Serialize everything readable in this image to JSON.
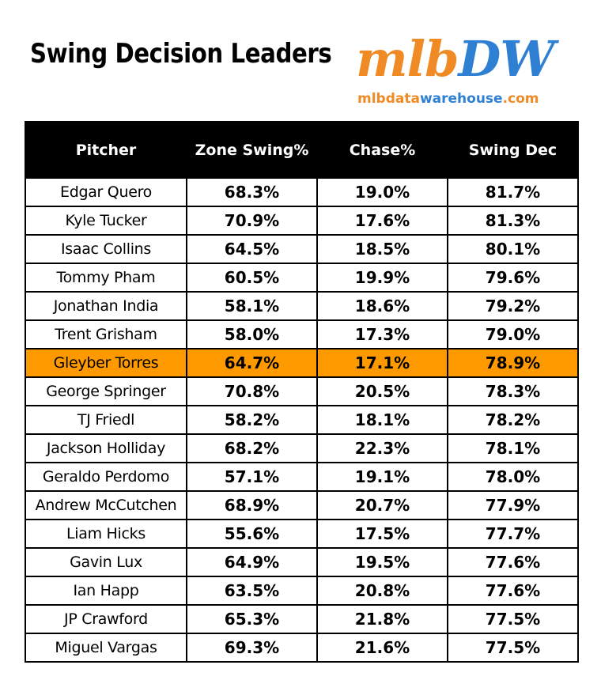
{
  "title": "Swing Decision Leaders",
  "logo": {
    "mark_part1": "mlb",
    "mark_part2": "DW",
    "url_part1": "mlbdata",
    "url_part2": "warehouse",
    "url_part3": ".com"
  },
  "colors": {
    "header_bg": "#000000",
    "highlight": "#ff9900",
    "logo_orange": "#f08a24",
    "logo_blue": "#2f7fd3"
  },
  "chart_data": {
    "type": "table",
    "columns": [
      "Pitcher",
      "Zone Swing%",
      "Chase%",
      "Swing Dec"
    ],
    "highlighted_row": "Gleyber Torres",
    "rows": [
      [
        "Edgar Quero",
        "68.3%",
        "19.0%",
        "81.7%"
      ],
      [
        "Kyle Tucker",
        "70.9%",
        "17.6%",
        "81.3%"
      ],
      [
        "Isaac Collins",
        "64.5%",
        "18.5%",
        "80.1%"
      ],
      [
        "Tommy Pham",
        "60.5%",
        "19.9%",
        "79.6%"
      ],
      [
        "Jonathan India",
        "58.1%",
        "18.6%",
        "79.2%"
      ],
      [
        "Trent Grisham",
        "58.0%",
        "17.3%",
        "79.0%"
      ],
      [
        "Gleyber Torres",
        "64.7%",
        "17.1%",
        "78.9%"
      ],
      [
        "George Springer",
        "70.8%",
        "20.5%",
        "78.3%"
      ],
      [
        "TJ Friedl",
        "58.2%",
        "18.1%",
        "78.2%"
      ],
      [
        "Jackson Holliday",
        "68.2%",
        "22.3%",
        "78.1%"
      ],
      [
        "Geraldo Perdomo",
        "57.1%",
        "19.1%",
        "78.0%"
      ],
      [
        "Andrew McCutchen",
        "68.9%",
        "20.7%",
        "77.9%"
      ],
      [
        "Liam Hicks",
        "55.6%",
        "17.5%",
        "77.7%"
      ],
      [
        "Gavin Lux",
        "64.9%",
        "19.5%",
        "77.6%"
      ],
      [
        "Ian Happ",
        "63.5%",
        "20.8%",
        "77.6%"
      ],
      [
        "JP Crawford",
        "65.3%",
        "21.8%",
        "77.5%"
      ],
      [
        "Miguel Vargas",
        "69.3%",
        "21.6%",
        "77.5%"
      ]
    ]
  }
}
